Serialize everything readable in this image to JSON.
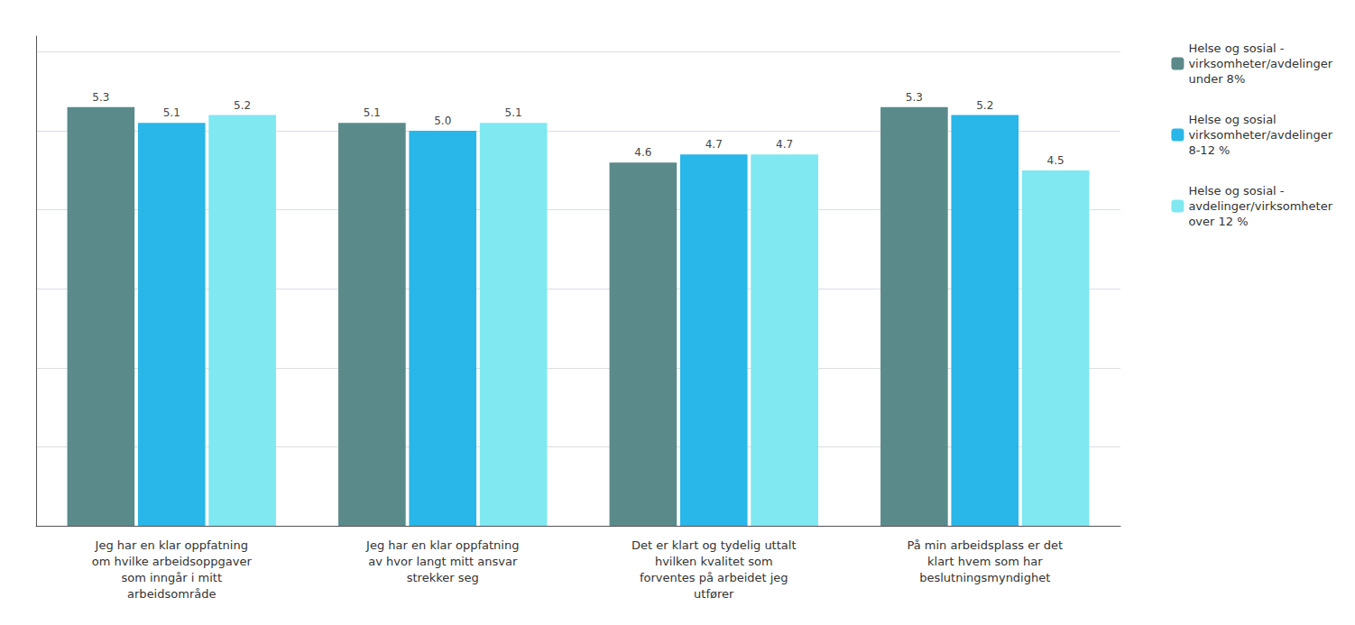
{
  "chart_data": {
    "type": "bar",
    "categories": [
      "Jeg har en klar oppfatning\nom hvilke arbeidsoppgaver\nsom inngår i mitt\narbeidsområde",
      "Jeg har en klar oppfatning\nav hvor langt mitt ansvar\nstrekker seg",
      "Det er klart og tydelig uttalt\nhvilken kvalitet som\nforventes på arbeidet jeg\nutfører",
      "På min arbeidsplass er det\nklart hvem som har\nbeslutningsmyndighet"
    ],
    "series": [
      {
        "name": "Helse og sosial -\nvirksomheter/avdelinger\nunder 8%",
        "color": "#5b8a8a",
        "values": [
          5.3,
          5.1,
          4.6,
          5.3
        ],
        "value_labels": [
          "5.3",
          "5.1",
          "4.6",
          "5.3"
        ]
      },
      {
        "name": "Helse og sosial\nvirksomheter/avdelinger\n8-12 %",
        "color": "#29b6e8",
        "values": [
          5.1,
          5.0,
          4.7,
          5.2
        ],
        "value_labels": [
          "5.1",
          "5.0",
          "4.7",
          "5.2"
        ]
      },
      {
        "name": "Helse og sosial -\navdelinger/virksomheter\nover 12 %",
        "color": "#7fe8f0",
        "values": [
          5.2,
          5.1,
          4.7,
          4.5
        ],
        "value_labels": [
          "5.2",
          "5.1",
          "4.7",
          "4.5"
        ]
      }
    ],
    "ylim": [
      0,
      6.2
    ],
    "yticks": [
      1,
      2,
      3,
      4,
      5,
      6
    ],
    "grid": true,
    "data_labels": true,
    "tick_labels": "x",
    "legend": "right"
  }
}
